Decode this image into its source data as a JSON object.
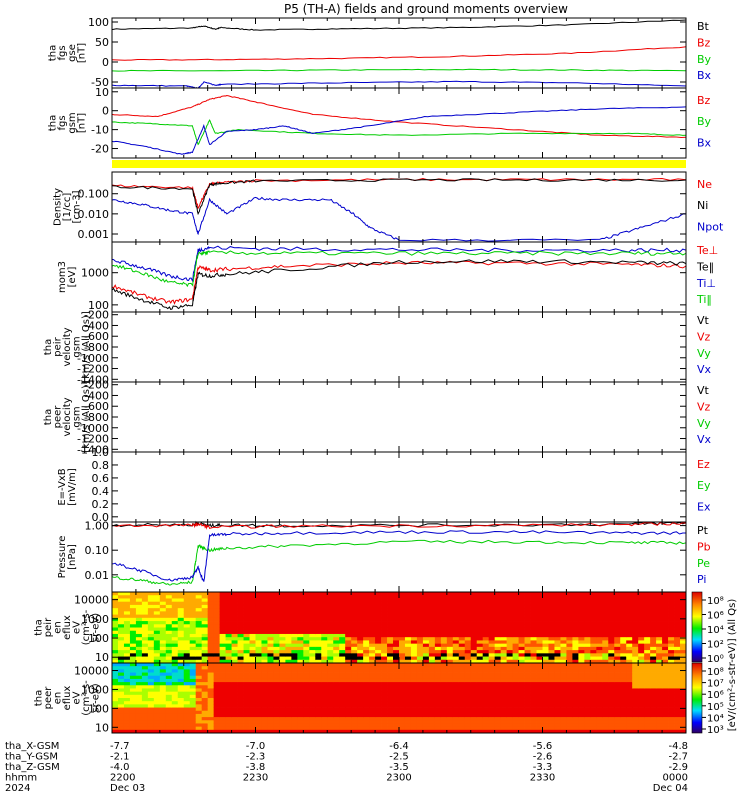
{
  "title": "P5 (TH-A) fields and ground moments overview",
  "colors": {
    "black": "#000000",
    "red": "#ee0000",
    "green": "#00cc00",
    "blue": "#0000cc",
    "yellow": "#ffff00"
  },
  "colorbar": {
    "label": "[eV/(cm²-s-str-eV)] (All Qs)",
    "top_ticks": [
      "10⁸",
      "10⁶",
      "10⁴",
      "10²",
      "10⁰"
    ],
    "bottom_ticks": [
      "10⁸",
      "10⁷",
      "10⁶",
      "10⁵",
      "10⁴",
      "10³"
    ]
  },
  "ephemeris": {
    "rows": [
      {
        "label": "tha_X-GSM",
        "values": [
          "-7.7",
          "-7.0",
          "-6.4",
          "-5.6",
          "-4.8"
        ]
      },
      {
        "label": "tha_Y-GSM",
        "values": [
          "-2.1",
          "-2.3",
          "-2.5",
          "-2.6",
          "-2.7"
        ]
      },
      {
        "label": "tha_Z-GSM",
        "values": [
          "-4.0",
          "-3.8",
          "-3.5",
          "-3.3",
          "-2.9"
        ]
      },
      {
        "label": "hhmm",
        "values": [
          "2200",
          "2230",
          "2300",
          "2330",
          "0000"
        ]
      },
      {
        "label": "2024",
        "values": [
          "Dec 03",
          "",
          "",
          "",
          "Dec 04"
        ]
      }
    ]
  },
  "chart_data": [
    {
      "type": "line",
      "id": "fgs1",
      "ylabel": [
        "tha",
        "fgs",
        "gse",
        "[nT]"
      ],
      "yticks": [
        "100",
        "50",
        "0",
        "-50"
      ],
      "ytick_values": [
        100,
        50,
        0,
        -50
      ],
      "ylim": [
        -65,
        110
      ],
      "series": [
        {
          "name": "Bt",
          "color": "black",
          "x": [
            0,
            0.14,
            0.16,
            0.18,
            0.19,
            0.25,
            0.4,
            0.6,
            0.8,
            1.0
          ],
          "y": [
            82,
            85,
            90,
            82,
            86,
            80,
            83,
            86,
            93,
            105
          ]
        },
        {
          "name": "Bz",
          "color": "red",
          "x": [
            0,
            0.2,
            0.4,
            0.6,
            0.8,
            1.0
          ],
          "y": [
            5,
            6,
            9,
            14,
            22,
            38
          ]
        },
        {
          "name": "By",
          "color": "green",
          "x": [
            0,
            0.2,
            0.4,
            0.6,
            0.8,
            1.0
          ],
          "y": [
            -22,
            -22,
            -20,
            -19,
            -20,
            -22
          ]
        },
        {
          "name": "Bx",
          "color": "blue",
          "x": [
            0,
            0.13,
            0.15,
            0.16,
            0.18,
            0.19,
            0.4,
            0.6,
            0.8,
            1.0
          ],
          "y": [
            -58,
            -60,
            -66,
            -50,
            -58,
            -56,
            -52,
            -49,
            -52,
            -60
          ]
        }
      ]
    },
    {
      "type": "line",
      "id": "fgs2",
      "ylabel": [
        "tha",
        "fgs",
        "gsm",
        "[nT]"
      ],
      "yticks": [
        "10",
        "0",
        "-10",
        "-20"
      ],
      "ytick_values": [
        10,
        0,
        -10,
        -20
      ],
      "ylim": [
        -25,
        12
      ],
      "series": [
        {
          "name": "Bz",
          "color": "red",
          "x": [
            0,
            0.08,
            0.14,
            0.17,
            0.2,
            0.26,
            0.35,
            0.5,
            0.7,
            0.85,
            1.0
          ],
          "y": [
            -2,
            -3,
            2,
            6,
            8,
            4,
            -2,
            -6,
            -10,
            -13,
            -14
          ]
        },
        {
          "name": "By",
          "color": "green",
          "x": [
            0,
            0.08,
            0.14,
            0.15,
            0.17,
            0.18,
            0.22,
            0.35,
            0.5,
            0.7,
            0.9,
            1.0
          ],
          "y": [
            -6,
            -7,
            -8,
            -18,
            -5,
            -12,
            -10,
            -12,
            -13,
            -12,
            -12,
            -13
          ]
        },
        {
          "name": "Bx",
          "color": "blue",
          "x": [
            0,
            0.06,
            0.12,
            0.14,
            0.16,
            0.17,
            0.2,
            0.25,
            0.3,
            0.35,
            0.45,
            0.55,
            0.7,
            0.85,
            1.0
          ],
          "y": [
            -16,
            -19,
            -23,
            -22,
            -8,
            -18,
            -11,
            -10,
            -8,
            -12,
            -8,
            -3,
            -1,
            1,
            2
          ]
        }
      ]
    },
    {
      "type": "line",
      "id": "density",
      "scale": "log",
      "ylabel": [
        "Density",
        "[1/cc]",
        "[cm-3]"
      ],
      "yticks": [
        "0.100",
        "0.010",
        "0.001"
      ],
      "ytick_values": [
        0.1,
        0.01,
        0.001
      ],
      "ylim": [
        0.0004,
        1.2
      ],
      "series": [
        {
          "name": "Ne",
          "color": "red",
          "x": [
            0,
            0.14,
            0.15,
            0.17,
            0.19,
            0.25,
            0.5,
            0.75,
            1.0
          ],
          "y": [
            0.25,
            0.2,
            0.02,
            0.3,
            0.35,
            0.45,
            0.5,
            0.5,
            0.5
          ]
        },
        {
          "name": "Ni",
          "color": "black",
          "x": [
            0,
            0.14,
            0.15,
            0.17,
            0.19,
            0.25,
            0.5,
            0.75,
            1.0
          ],
          "y": [
            0.22,
            0.18,
            0.01,
            0.28,
            0.33,
            0.43,
            0.48,
            0.48,
            0.48
          ]
        },
        {
          "name": "Npot",
          "color": "blue",
          "x": [
            0,
            0.05,
            0.1,
            0.14,
            0.15,
            0.17,
            0.2,
            0.25,
            0.3,
            0.38,
            0.42,
            0.45,
            0.5,
            0.85,
            0.92,
            1.0
          ],
          "y": [
            0.05,
            0.03,
            0.015,
            0.01,
            0.001,
            0.05,
            0.01,
            0.06,
            0.05,
            0.05,
            0.01,
            0.002,
            0.0005,
            0.0005,
            0.002,
            0.01
          ]
        }
      ]
    },
    {
      "type": "line",
      "id": "temperature",
      "scale": "log",
      "ylabel": [
        "mom3",
        "[eV]"
      ],
      "yticks": [
        "1000",
        "100"
      ],
      "ytick_values": [
        1000,
        100
      ],
      "ylim": [
        60,
        9000
      ],
      "series": [
        {
          "name": "Te⊥",
          "color": "red",
          "x": [
            0,
            0.05,
            0.1,
            0.14,
            0.15,
            0.17,
            0.2,
            0.3,
            0.5,
            0.7,
            0.9,
            1.0
          ],
          "y": [
            400,
            200,
            120,
            150,
            1500,
            1200,
            1300,
            1600,
            2000,
            2000,
            1800,
            1600
          ]
        },
        {
          "name": "Te‖",
          "color": "black",
          "x": [
            0,
            0.05,
            0.1,
            0.14,
            0.15,
            0.17,
            0.2,
            0.3,
            0.5,
            0.7,
            0.9,
            1.0
          ],
          "y": [
            300,
            150,
            80,
            100,
            900,
            800,
            900,
            1200,
            2200,
            2300,
            2100,
            1900
          ]
        },
        {
          "name": "Ti⊥",
          "color": "blue",
          "x": [
            0,
            0.05,
            0.1,
            0.14,
            0.15,
            0.17,
            0.3,
            0.5,
            0.7,
            0.9,
            1.0
          ],
          "y": [
            2500,
            1500,
            800,
            600,
            5000,
            6000,
            5500,
            5200,
            5000,
            5000,
            5000
          ]
        },
        {
          "name": "Ti‖",
          "color": "green",
          "x": [
            0,
            0.05,
            0.1,
            0.14,
            0.15,
            0.17,
            0.3,
            0.5,
            0.7,
            0.9,
            1.0
          ],
          "y": [
            1800,
            1000,
            500,
            400,
            4000,
            4200,
            4000,
            4000,
            4000,
            4000,
            4000
          ]
        }
      ]
    },
    {
      "type": "line",
      "id": "peir_velocity",
      "ylabel": [
        "tha",
        "peir",
        "velocity",
        "gsm",
        "[km/s (All Qs)]"
      ],
      "yticks": [
        "-200",
        "-400",
        "-600",
        "-800",
        "-1000",
        "-1200",
        "-1400"
      ],
      "ytick_values": [
        -200,
        -400,
        -600,
        -800,
        -1000,
        -1200,
        -1400
      ],
      "ylim": [
        -1450,
        -150
      ],
      "series": [
        {
          "name": "Vt",
          "color": "black",
          "x": [],
          "y": []
        },
        {
          "name": "Vz",
          "color": "red",
          "x": [],
          "y": []
        },
        {
          "name": "Vy",
          "color": "green",
          "x": [],
          "y": []
        },
        {
          "name": "Vx",
          "color": "blue",
          "x": [],
          "y": []
        }
      ]
    },
    {
      "type": "line",
      "id": "peer_velocity",
      "ylabel": [
        "tha",
        "peer",
        "velocity",
        "gsm",
        "[km/s (All Qs)]"
      ],
      "yticks": [
        "-200",
        "-400",
        "-600",
        "-800",
        "-1000",
        "-1200",
        "-1400"
      ],
      "ytick_values": [
        -200,
        -400,
        -600,
        -800,
        -1000,
        -1200,
        -1400
      ],
      "ylim": [
        -1450,
        -150
      ],
      "series": [
        {
          "name": "Vt",
          "color": "black",
          "x": [],
          "y": []
        },
        {
          "name": "Vz",
          "color": "red",
          "x": [],
          "y": []
        },
        {
          "name": "Vy",
          "color": "green",
          "x": [],
          "y": []
        },
        {
          "name": "Vx",
          "color": "blue",
          "x": [],
          "y": []
        }
      ]
    },
    {
      "type": "line",
      "id": "efield",
      "ylabel": [
        "E=-VxB",
        "[mV/m]"
      ],
      "yticks": [
        "1.0",
        "0.8",
        "0.6",
        "0.4",
        "0.2",
        "0.0"
      ],
      "ytick_values": [
        1.0,
        0.8,
        0.6,
        0.4,
        0.2,
        0.0
      ],
      "ylim": [
        -0.08,
        1.0
      ],
      "series": [
        {
          "name": "Ez",
          "color": "red",
          "x": [],
          "y": []
        },
        {
          "name": "Ey",
          "color": "green",
          "x": [],
          "y": []
        },
        {
          "name": "Ex",
          "color": "blue",
          "x": [],
          "y": []
        }
      ]
    },
    {
      "type": "line",
      "id": "pressure",
      "scale": "log",
      "ylabel": [
        "Pressure",
        "[nPa]"
      ],
      "yticks": [
        "1.00",
        "0.10",
        "0.01"
      ],
      "ytick_values": [
        1.0,
        0.1,
        0.01
      ],
      "ylim": [
        0.002,
        1.4
      ],
      "series": [
        {
          "name": "Pt",
          "color": "black",
          "x": [
            0,
            0.14,
            0.15,
            0.17,
            0.19,
            0.3,
            0.6,
            0.9,
            1.0
          ],
          "y": [
            1.05,
            1.1,
            1.25,
            1.0,
            1.05,
            1.0,
            1.05,
            1.15,
            1.3
          ]
        },
        {
          "name": "Pb",
          "color": "red",
          "x": [
            0,
            0.14,
            0.15,
            0.17,
            0.3,
            0.6,
            0.9,
            1.0
          ],
          "y": [
            1.0,
            1.02,
            1.15,
            0.85,
            0.95,
            1.0,
            1.1,
            1.25
          ]
        },
        {
          "name": "Pe",
          "color": "green",
          "x": [
            0,
            0.05,
            0.1,
            0.14,
            0.15,
            0.17,
            0.2,
            0.3,
            0.5,
            0.7,
            0.9,
            1.0
          ],
          "y": [
            0.008,
            0.006,
            0.004,
            0.005,
            0.15,
            0.1,
            0.12,
            0.15,
            0.22,
            0.22,
            0.2,
            0.2
          ]
        },
        {
          "name": "Pi",
          "color": "blue",
          "x": [
            0,
            0.05,
            0.1,
            0.14,
            0.15,
            0.16,
            0.17,
            0.2,
            0.3,
            0.5,
            0.7,
            0.9,
            1.0
          ],
          "y": [
            0.03,
            0.015,
            0.006,
            0.008,
            0.02,
            0.005,
            0.4,
            0.45,
            0.5,
            0.55,
            0.55,
            0.5,
            0.5
          ]
        }
      ]
    },
    {
      "type": "heatmap",
      "id": "peir_spec",
      "scale": "log",
      "ylabel": [
        "tha",
        "peir",
        "en",
        "eflux",
        "eV",
        "(cm²-s-",
        "sr-eV)"
      ],
      "yticks": [
        "10000",
        "1000",
        "100",
        "10"
      ],
      "ytick_values": [
        10000,
        1000,
        100,
        10
      ],
      "ylim": [
        5,
        25000
      ]
    },
    {
      "type": "heatmap",
      "id": "peer_spec",
      "scale": "log",
      "ylabel": [
        "tha",
        "peer",
        "en",
        "eflux",
        "eV",
        "(cm²-s-",
        "sr-eV)"
      ],
      "yticks": [
        "10000",
        "1000",
        "100",
        "10"
      ],
      "ytick_values": [
        10000,
        1000,
        100,
        10
      ],
      "ylim": [
        5,
        25000
      ]
    }
  ]
}
